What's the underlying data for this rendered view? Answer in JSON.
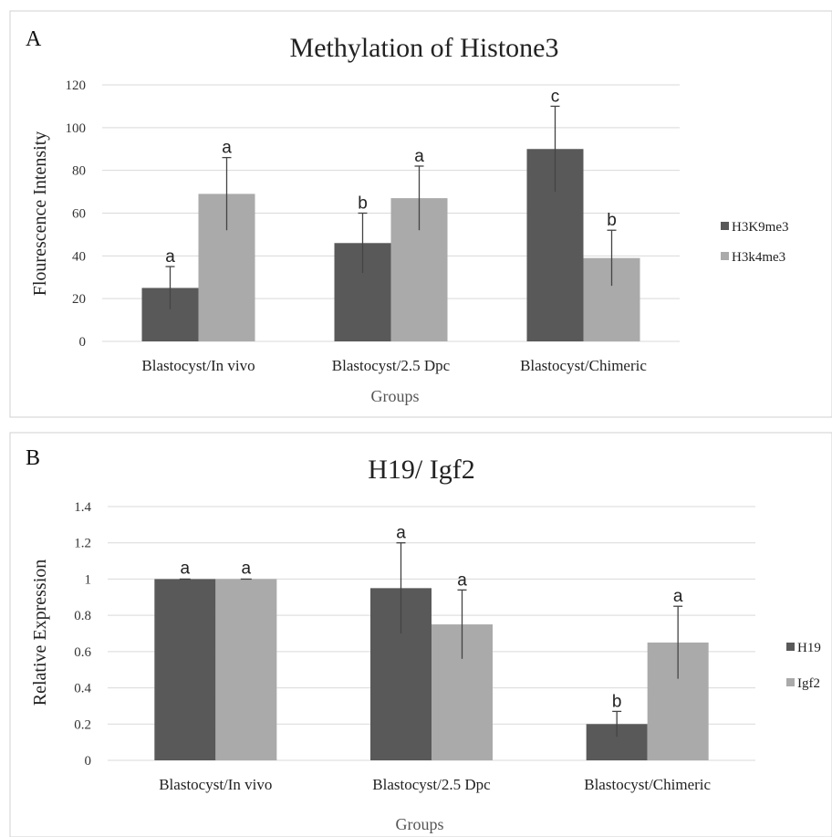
{
  "chart_data": [
    {
      "type": "bar",
      "panel": "A",
      "title": "Methylation of Histone3",
      "xlabel": "Groups",
      "ylabel": "Flourescence Intensity",
      "ylim": [
        0,
        120
      ],
      "yticks": [
        "0",
        "20",
        "40",
        "60",
        "80",
        "100",
        "120"
      ],
      "categories": [
        "Blastocyst/In vivo",
        "Blastocyst/2.5 Dpc",
        "Blastocyst/Chimeric"
      ],
      "series": [
        {
          "name": "H3K9me3",
          "color": "#595959",
          "values": [
            25,
            46,
            90
          ],
          "errors": [
            10,
            14,
            20
          ],
          "labels": [
            "a",
            "b",
            "c"
          ]
        },
        {
          "name": "H3k4me3",
          "color": "#aaaaaa",
          "values": [
            69,
            67,
            39
          ],
          "errors": [
            17,
            15,
            13
          ],
          "labels": [
            "a",
            "a",
            "b"
          ]
        }
      ],
      "grid": true,
      "legend": "right"
    },
    {
      "type": "bar",
      "panel": "B",
      "title": "H19/ Igf2",
      "xlabel": "Groups",
      "ylabel": "Relative Expression",
      "ylim": [
        0,
        1.4
      ],
      "yticks": [
        "0",
        "0.2",
        "0.4",
        "0.6",
        "0.8",
        "1",
        "1.2",
        "1.4"
      ],
      "categories": [
        "Blastocyst/In vivo",
        "Blastocyst/2.5 Dpc",
        "Blastocyst/Chimeric"
      ],
      "series": [
        {
          "name": "H19",
          "color": "#595959",
          "values": [
            1.0,
            0.95,
            0.2
          ],
          "errors": [
            0,
            0.25,
            0.07
          ],
          "labels": [
            "a",
            "a",
            "b"
          ]
        },
        {
          "name": "Igf2",
          "color": "#aaaaaa",
          "values": [
            1.0,
            0.75,
            0.65
          ],
          "errors": [
            0,
            0.19,
            0.2
          ],
          "labels": [
            "a",
            "a",
            "a"
          ]
        }
      ],
      "grid": true,
      "legend": "right"
    }
  ]
}
